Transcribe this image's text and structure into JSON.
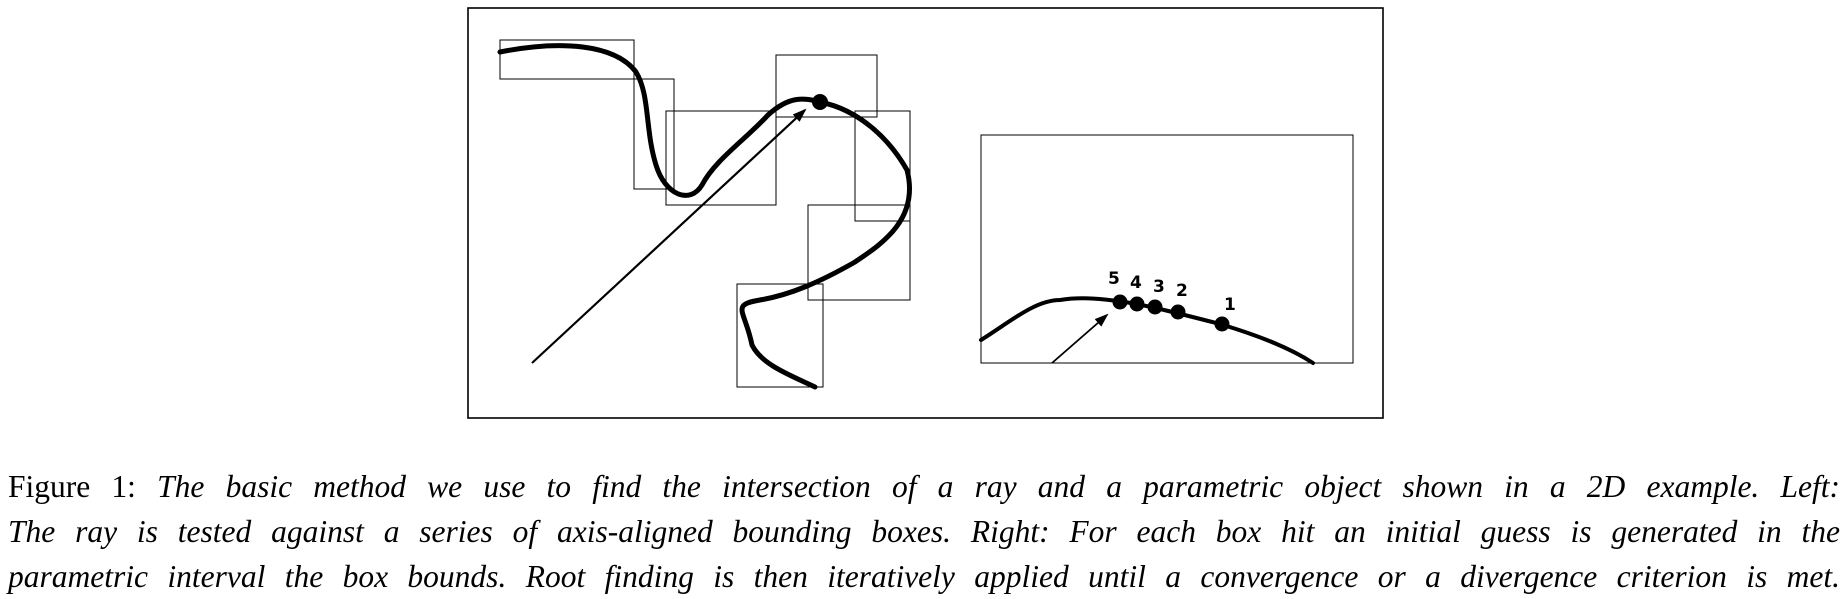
{
  "figure": {
    "right_panel": {
      "iterations": [
        {
          "label": "5"
        },
        {
          "label": "4"
        },
        {
          "label": "3"
        },
        {
          "label": "2"
        },
        {
          "label": "1"
        }
      ]
    }
  },
  "caption": {
    "lead": "Figure 1: ",
    "line1_rest": "The basic method we use to find the intersection of a ray and a parametric object shown in a 2D example. Left:",
    "line2": "The ray is tested against a series of axis-aligned bounding boxes. Right: For each box hit an initial guess is generated in the",
    "line3": "parametric interval the box bounds. Root finding is then iteratively applied until a convergence or a divergence criterion is met."
  }
}
